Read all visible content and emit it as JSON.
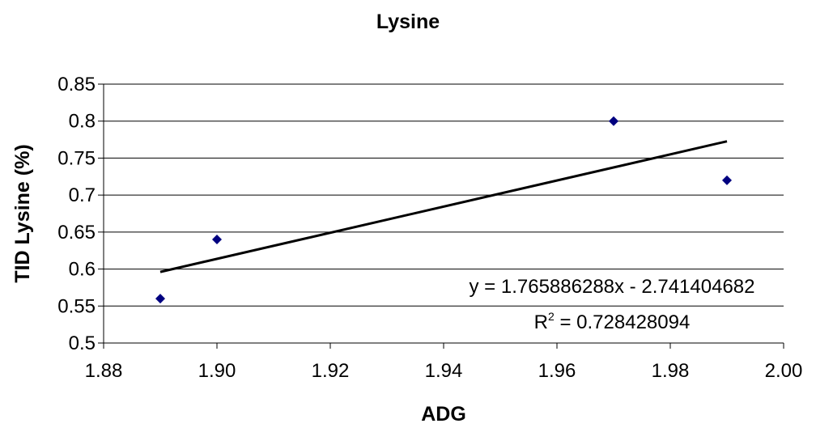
{
  "chart_data": {
    "type": "scatter",
    "title": "Lysine",
    "xlabel": "ADG",
    "ylabel": "TID Lysine (%)",
    "xlim": [
      1.88,
      2.0
    ],
    "ylim": [
      0.5,
      0.85
    ],
    "x_ticks": [
      "1.88",
      "1.90",
      "1.92",
      "1.94",
      "1.96",
      "1.98",
      "2.00"
    ],
    "y_ticks": [
      "0.5",
      "0.55",
      "0.6",
      "0.65",
      "0.7",
      "0.75",
      "0.8",
      "0.85"
    ],
    "grid": "horizontal",
    "series": [
      {
        "x": [
          1.89,
          1.9,
          1.97,
          1.99
        ],
        "y": [
          0.56,
          0.64,
          0.8,
          0.72
        ],
        "color": "#000080",
        "marker": "diamond"
      }
    ],
    "trendline": {
      "type": "linear",
      "slope": 1.765886288,
      "intercept": -2.741404682,
      "x_range": [
        1.89,
        1.99
      ],
      "color": "#000000"
    },
    "annotations": {
      "equation": "y = 1.765886288x - 2.741404682",
      "r2_prefix": "R",
      "r2_sup": "2",
      "r2_value": " = 0.728428094"
    }
  }
}
